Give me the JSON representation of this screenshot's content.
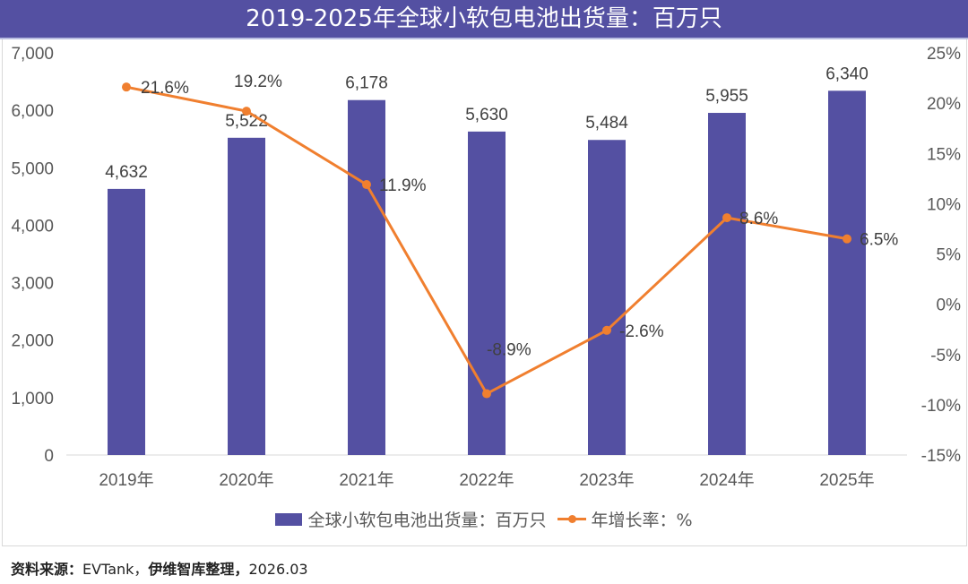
{
  "title": "2019-2025年全球小软包电池出货量：百万只",
  "chart_data": {
    "type": "bar+line",
    "title": "2019-2025年全球小软包电池出货量：百万只",
    "categories": [
      "2019年",
      "2020年",
      "2021年",
      "2022年",
      "2023年",
      "2024年",
      "2025年"
    ],
    "series": [
      {
        "name": "全球小软包电池出货量：百万只",
        "type": "bar",
        "axis": "left",
        "color": "#5450A2",
        "values": [
          4632,
          5522,
          6178,
          5630,
          5484,
          5955,
          6340
        ],
        "labels": [
          "4,632",
          "5,522",
          "6,178",
          "5,630",
          "5,484",
          "5,955",
          "6,340"
        ]
      },
      {
        "name": "年增长率：%",
        "type": "line",
        "axis": "right",
        "color": "#F07F2F",
        "values": [
          21.6,
          19.2,
          11.9,
          -8.9,
          -2.6,
          8.6,
          6.5
        ],
        "labels": [
          "21.6%",
          "19.2%",
          "11.9%",
          "-8.9%",
          "-2.6%",
          "8.6%",
          "6.5%"
        ]
      }
    ],
    "left_axis": {
      "ylim": [
        0,
        7000
      ],
      "ticks": [
        "0",
        "1,000",
        "2,000",
        "3,000",
        "4,000",
        "5,000",
        "6,000",
        "7,000"
      ]
    },
    "right_axis": {
      "ylim": [
        -15,
        25
      ],
      "ticks": [
        "-15%",
        "-10%",
        "-5%",
        "0%",
        "5%",
        "10%",
        "15%",
        "20%",
        "25%"
      ]
    },
    "grid": false,
    "legend": "bottom"
  },
  "legend": {
    "bar": "全球小软包电池出货量：百万只",
    "line": "年增长率：%"
  },
  "source": {
    "label": "资料来源：",
    "text": "EVTank，",
    "org": "伊维智库整理，",
    "date": "2026.03"
  }
}
